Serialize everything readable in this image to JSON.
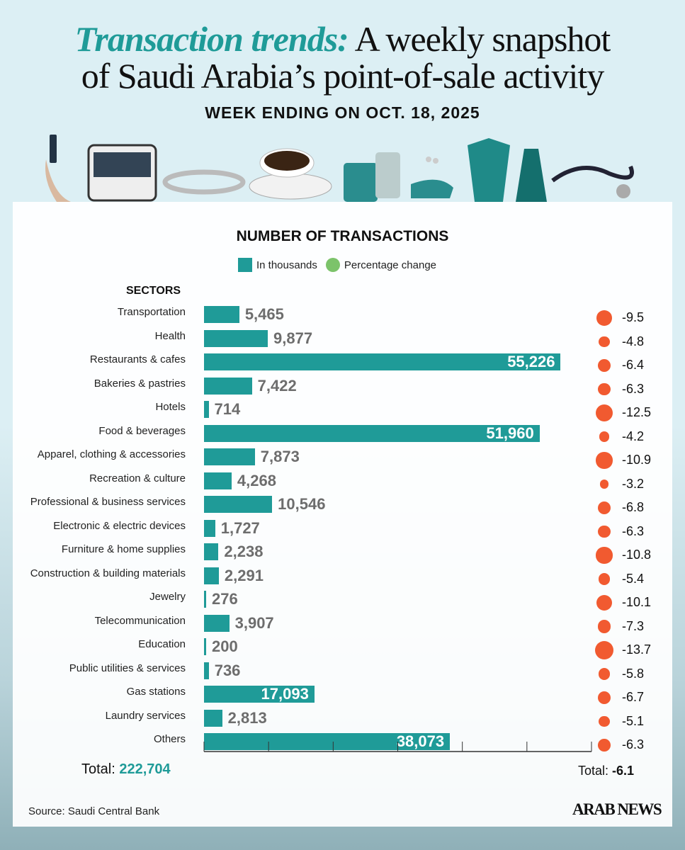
{
  "header": {
    "title_accent": "Transaction trends:",
    "title_line1_rest": "A weekly snapshot",
    "title_line2": "of Saudi Arabia’s point-of-sale activity",
    "subtitle": "WEEK ENDING ON OCT. 18, 2025"
  },
  "colors": {
    "bar": "#1f9b98",
    "dot": "#f15a30",
    "legend_dot": "#7cc36a",
    "background": "#dceff4"
  },
  "icons": [
    "phone-in-hand-icon",
    "bus-icon",
    "bracelet-icon",
    "coffee-cup-icon",
    "luggage-icon",
    "shoes-accessories-icon",
    "jacket-icon",
    "dress-icon",
    "stethoscope-icon"
  ],
  "chart_data": {
    "type": "bar",
    "orientation": "horizontal",
    "title": "NUMBER OF TRANSACTIONS",
    "category_header": "SECTORS",
    "legend": [
      "In thousands",
      "Percentage change"
    ],
    "xlim": [
      0,
      60000
    ],
    "categories": [
      "Transportation",
      "Health",
      "Restaurants & cafes",
      "Bakeries & pastries",
      "Hotels",
      "Food & beverages",
      "Apparel, clothing & accessories",
      "Recreation & culture",
      "Professional & business services",
      "Electronic & electric devices",
      "Furniture & home supplies",
      "Construction & building materials",
      "Jewelry",
      "Telecommunication",
      "Education",
      "Public utilities & services",
      "Gas stations",
      "Laundry services",
      "Others"
    ],
    "series": [
      {
        "name": "In thousands",
        "values": [
          5465,
          9877,
          55226,
          7422,
          714,
          51960,
          7873,
          4268,
          10546,
          1727,
          2238,
          2291,
          276,
          3907,
          200,
          736,
          17093,
          2813,
          38073
        ],
        "labels": [
          "5,465",
          "9,877",
          "55,226",
          "7,422",
          "714",
          "51,960",
          "7,873",
          "4,268",
          "10,546",
          "1,727",
          "2,238",
          "2,291",
          "276",
          "3,907",
          "200",
          "736",
          "17,093",
          "2,813",
          "38,073"
        ]
      },
      {
        "name": "Percentage change",
        "values": [
          -9.5,
          -4.8,
          -6.4,
          -6.3,
          -12.5,
          -4.2,
          -10.9,
          -3.2,
          -6.8,
          -6.3,
          -10.8,
          -5.4,
          -10.1,
          -7.3,
          -13.7,
          -5.8,
          -6.7,
          -5.1,
          -6.3
        ],
        "labels": [
          "-9.5",
          "-4.8",
          "-6.4",
          "-6.3",
          "-12.5",
          "-4.2",
          "-10.9",
          "-3.2",
          "-6.8",
          "-6.3",
          "-10.8",
          "-5.4",
          "-10.1",
          "-7.3",
          "-13.7",
          "-5.8",
          "-6.7",
          "-5.1",
          "-6.3"
        ]
      }
    ]
  },
  "totals": {
    "count_label": "Total:",
    "count": "222,704",
    "pct_label": "Total:",
    "pct": "-6.1"
  },
  "footer": {
    "source": "Source: Saudi Central Bank",
    "logo": "ARAB NEWS"
  }
}
